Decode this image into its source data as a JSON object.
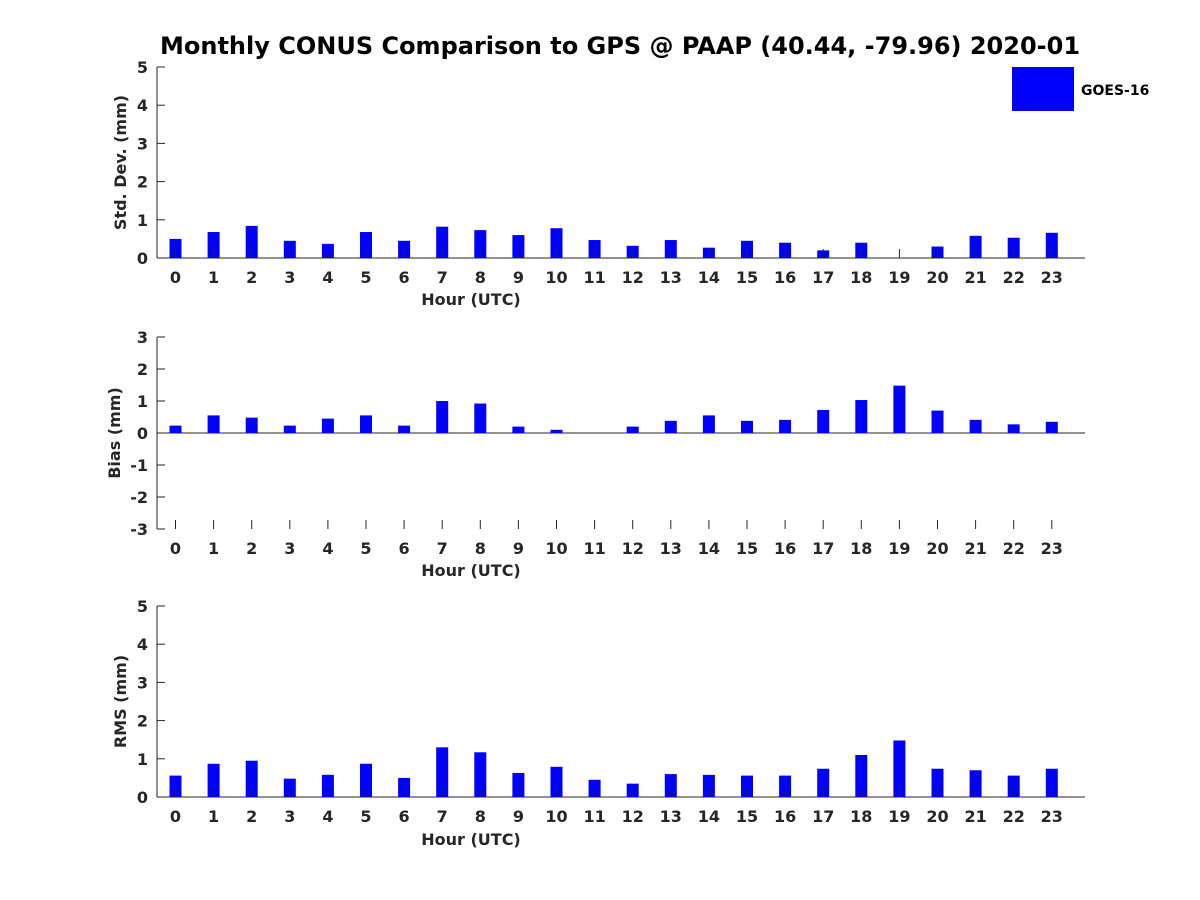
{
  "title": "Monthly CONUS Comparison to GPS @ PAAP (40.44, -79.96) 2020-01",
  "chart_data": [
    {
      "type": "bar",
      "id": "std",
      "categories": [
        "0",
        "1",
        "2",
        "3",
        "4",
        "5",
        "6",
        "7",
        "8",
        "9",
        "10",
        "11",
        "12",
        "13",
        "14",
        "15",
        "16",
        "17",
        "18",
        "19",
        "20",
        "21",
        "22",
        "23"
      ],
      "series": [
        {
          "name": "GOES-16",
          "color": "#0000ff",
          "values": [
            0.5,
            0.68,
            0.84,
            0.45,
            0.37,
            0.68,
            0.45,
            0.82,
            0.73,
            0.6,
            0.78,
            0.47,
            0.32,
            0.47,
            0.27,
            0.45,
            0.4,
            0.2,
            0.4,
            0.0,
            0.3,
            0.58,
            0.53,
            0.66
          ]
        }
      ],
      "xlabel": "Hour (UTC)",
      "ylabel": "Std. Dev. (mm)",
      "ylim": [
        0,
        5
      ],
      "yticks": [
        "0",
        "1",
        "2",
        "3",
        "4",
        "5"
      ]
    },
    {
      "type": "bar",
      "id": "bias",
      "categories": [
        "0",
        "1",
        "2",
        "3",
        "4",
        "5",
        "6",
        "7",
        "8",
        "9",
        "10",
        "11",
        "12",
        "13",
        "14",
        "15",
        "16",
        "17",
        "18",
        "19",
        "20",
        "21",
        "22",
        "23"
      ],
      "series": [
        {
          "name": "GOES-16",
          "color": "#0000ff",
          "values": [
            0.23,
            0.55,
            0.48,
            0.23,
            0.45,
            0.55,
            0.23,
            1.0,
            0.92,
            0.2,
            0.1,
            0.0,
            0.2,
            0.38,
            0.55,
            0.38,
            0.41,
            0.72,
            1.03,
            1.48,
            0.7,
            0.41,
            0.27,
            0.35
          ]
        }
      ],
      "xlabel": "Hour (UTC)",
      "ylabel": "Bias (mm)",
      "ylim": [
        -3,
        3
      ],
      "yticks": [
        "-3",
        "-2",
        "-1",
        "0",
        "1",
        "2",
        "3"
      ]
    },
    {
      "type": "bar",
      "id": "rms",
      "categories": [
        "0",
        "1",
        "2",
        "3",
        "4",
        "5",
        "6",
        "7",
        "8",
        "9",
        "10",
        "11",
        "12",
        "13",
        "14",
        "15",
        "16",
        "17",
        "18",
        "19",
        "20",
        "21",
        "22",
        "23"
      ],
      "series": [
        {
          "name": "GOES-16",
          "color": "#0000ff",
          "values": [
            0.56,
            0.87,
            0.95,
            0.48,
            0.58,
            0.87,
            0.5,
            1.3,
            1.17,
            0.63,
            0.79,
            0.45,
            0.35,
            0.6,
            0.58,
            0.56,
            0.56,
            0.74,
            1.1,
            1.48,
            0.74,
            0.7,
            0.56,
            0.74
          ]
        }
      ],
      "xlabel": "Hour (UTC)",
      "ylabel": "RMS (mm)",
      "ylim": [
        0,
        5
      ],
      "yticks": [
        "0",
        "1",
        "2",
        "3",
        "4",
        "5"
      ]
    }
  ],
  "legend": {
    "label": "GOES-16",
    "color": "#0000ff"
  }
}
